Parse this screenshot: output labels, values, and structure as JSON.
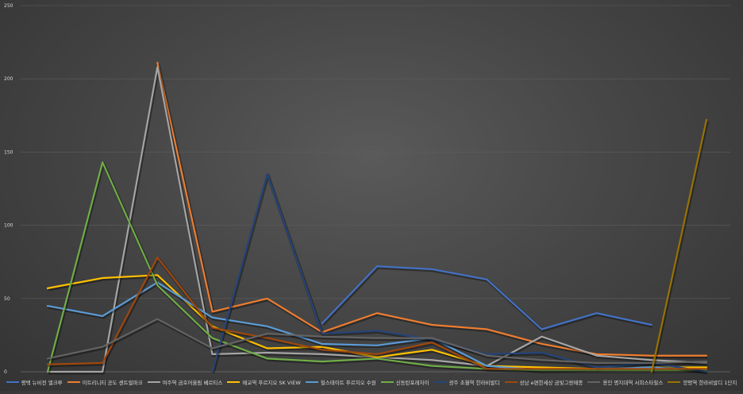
{
  "chart_data": {
    "type": "line",
    "title": "",
    "xlabel": "",
    "ylabel": "",
    "ylim": [
      0,
      250
    ],
    "yticks": [
      0,
      50,
      100,
      150,
      200,
      250
    ],
    "grid": true,
    "legend_position": "bottom",
    "x": [
      1,
      2,
      3,
      4,
      5,
      6,
      7,
      8,
      9,
      10,
      11,
      12,
      13
    ],
    "series": [
      {
        "name": "평택 뉴비전 엘크루",
        "color": "#4472c4",
        "values": [
          null,
          null,
          null,
          null,
          null,
          33,
          72,
          70,
          63,
          29,
          40,
          32,
          null
        ]
      },
      {
        "name": "이트리니티 공도 센트럴파크",
        "color": "#ed7d31",
        "values": [
          null,
          null,
          211,
          41,
          50,
          27,
          40,
          32,
          29,
          19,
          12,
          11,
          11
        ]
      },
      {
        "name": "여주역 금호어울림 베르티스",
        "color": "#a5a5a5",
        "values": [
          0,
          0,
          208,
          12,
          13,
          12,
          10,
          8,
          4,
          24,
          11,
          8,
          6
        ]
      },
      {
        "name": "매교역 푸르지오 SK VIEW",
        "color": "#ffc000",
        "values": [
          57,
          64,
          66,
          31,
          16,
          17,
          10,
          15,
          4,
          3,
          2,
          3,
          3
        ]
      },
      {
        "name": "힐스테이트 푸르지오 수원",
        "color": "#5b9bd5",
        "values": [
          45,
          38,
          61,
          37,
          31,
          19,
          18,
          23,
          4,
          1,
          2,
          3,
          1
        ]
      },
      {
        "name": "신동탄포레자이",
        "color": "#70ad47",
        "values": [
          0,
          143,
          59,
          23,
          9,
          7,
          9,
          4,
          2,
          1,
          1,
          1,
          1
        ]
      },
      {
        "name": "광주 초월역 한라비발디",
        "color": "#264478",
        "values": [
          null,
          null,
          null,
          0,
          135,
          26,
          28,
          22,
          12,
          13,
          3,
          6,
          0
        ]
      },
      {
        "name": "성남 e편한세상 금빛그랑메종",
        "color": "#9e480e",
        "values": [
          5,
          6,
          78,
          30,
          23,
          15,
          12,
          20,
          2,
          2,
          2,
          2,
          2
        ]
      },
      {
        "name": "용인 명지대역 서희스타힐스",
        "color": "#636363",
        "values": [
          9,
          17,
          36,
          16,
          26,
          24,
          23,
          23,
          11,
          8,
          6,
          6,
          7
        ]
      },
      {
        "name": "양평역 한라비발디 1단지",
        "color": "#997300",
        "values": [
          null,
          null,
          null,
          null,
          null,
          null,
          null,
          null,
          null,
          null,
          null,
          0,
          172
        ]
      }
    ]
  }
}
